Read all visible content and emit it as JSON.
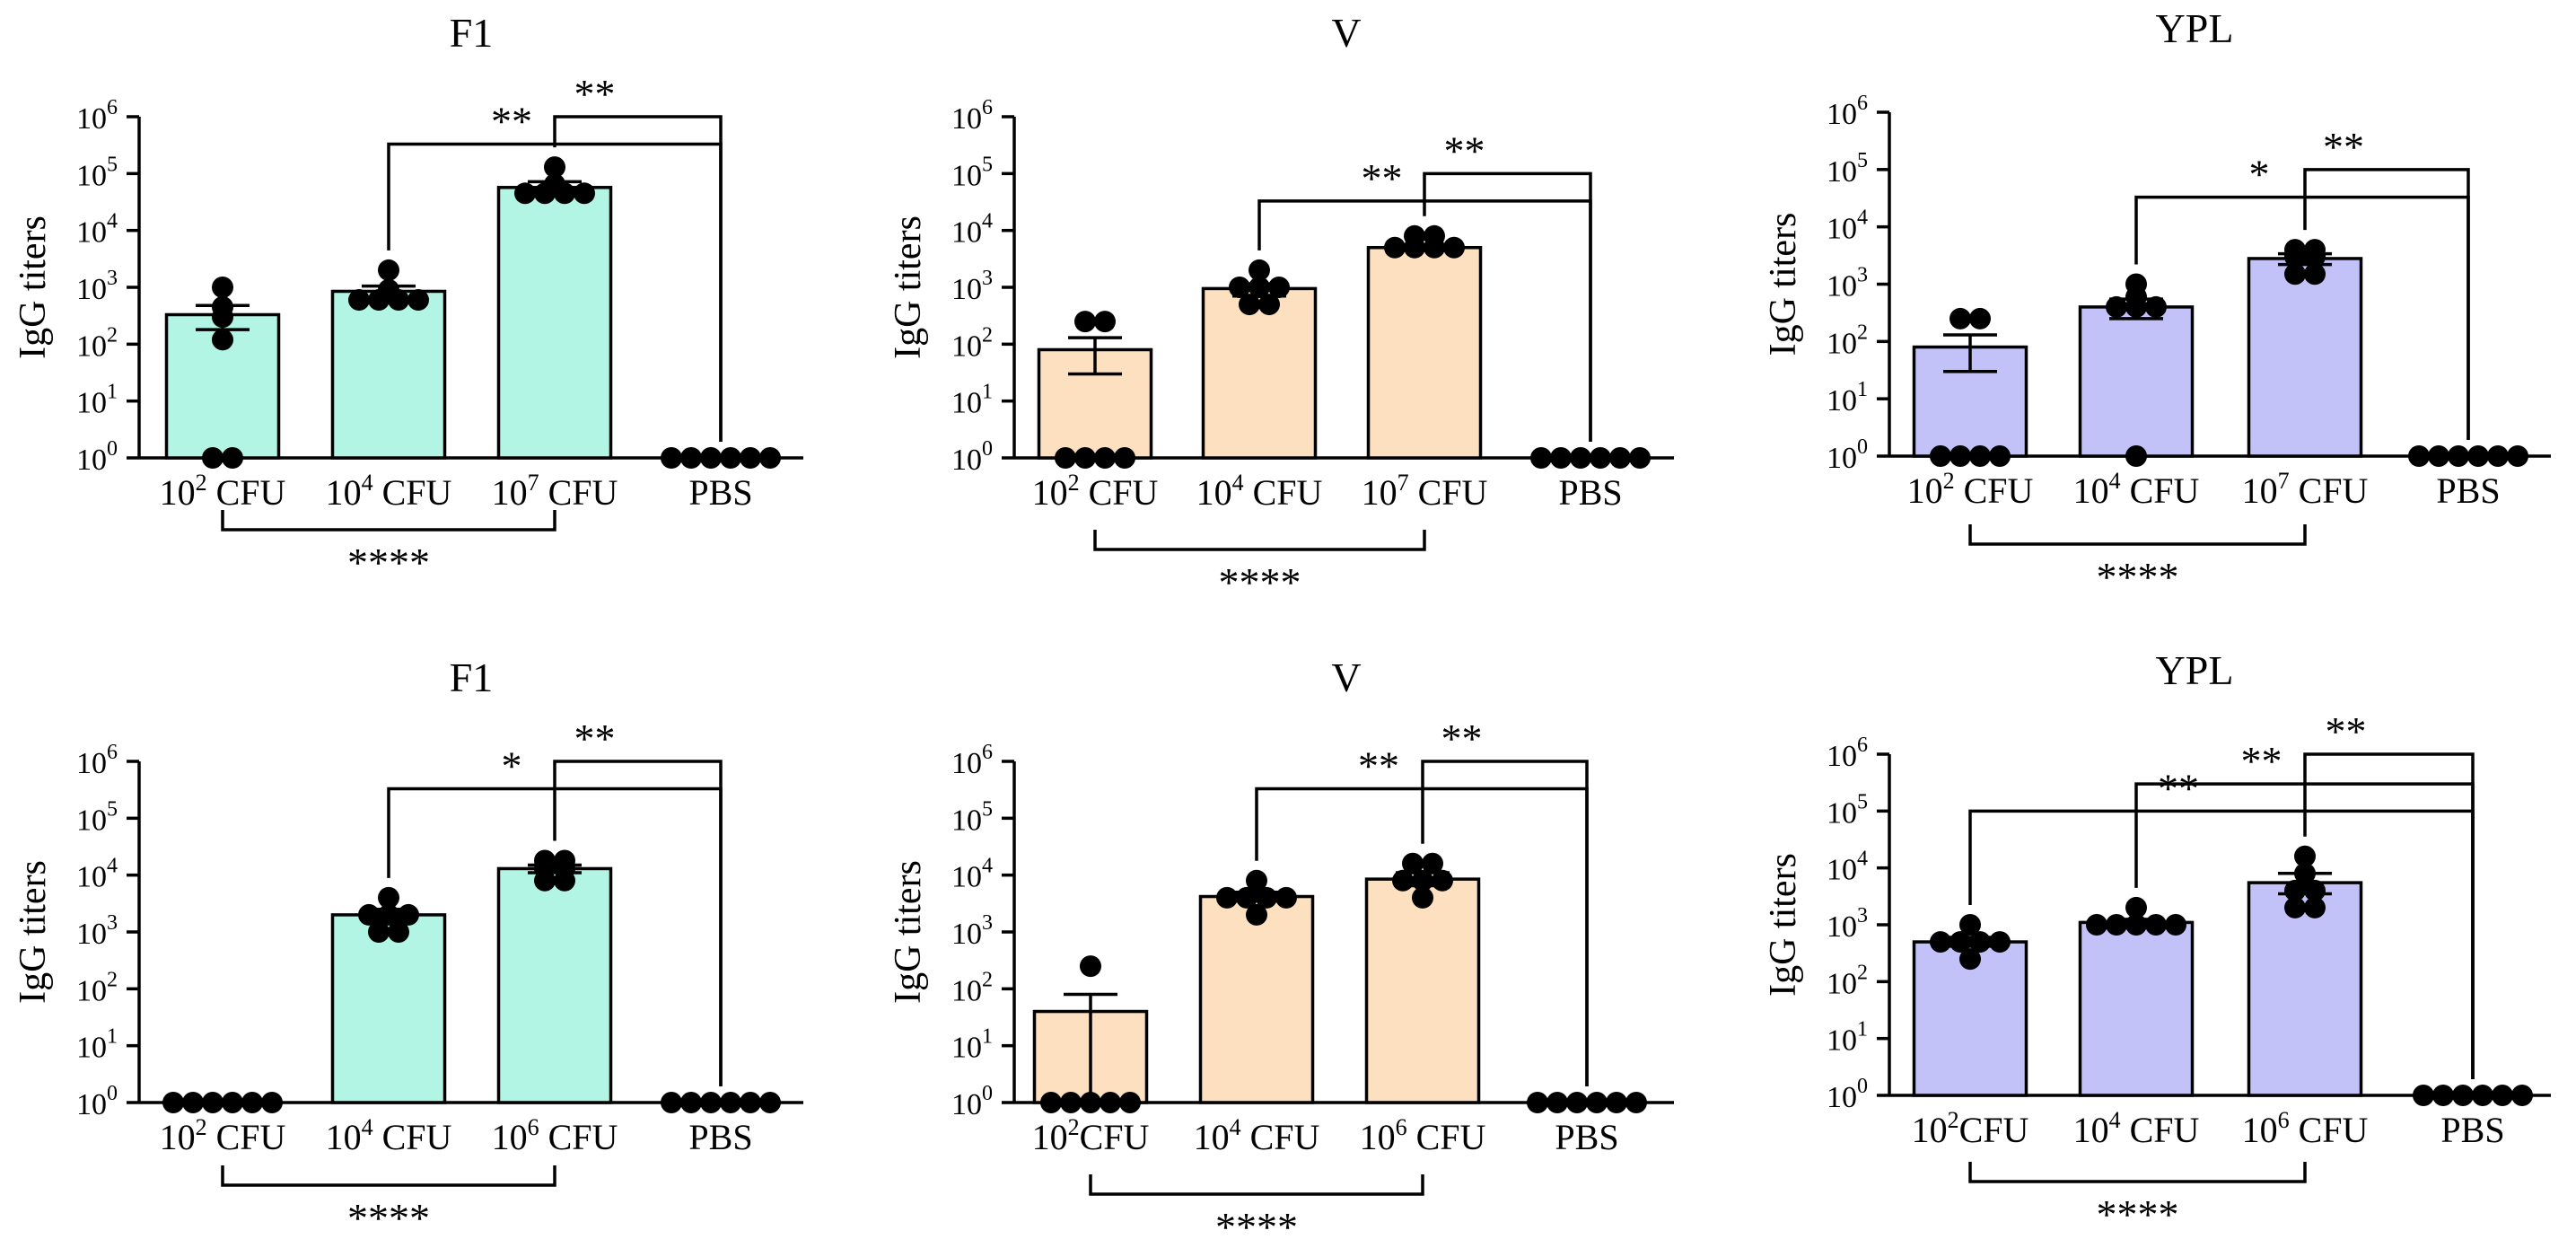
{
  "figure": {
    "yaxis_label": "IgG titers",
    "yscale": "log10",
    "ylim": [
      1,
      1000000
    ],
    "y_ticks": [
      1,
      10,
      100,
      1000,
      10000,
      100000,
      1000000
    ],
    "y_tick_exponents": [
      "0",
      "1",
      "2",
      "3",
      "4",
      "5",
      "6"
    ],
    "colors": {
      "F1": "#b3f5e5",
      "V": "#fde0c0",
      "YPL": "#c2c2f8",
      "axis": "#000000",
      "points": "#000000"
    }
  },
  "chart_data": [
    {
      "type": "bar",
      "title": "F1",
      "ylabel": "IgG titers",
      "yscale": "log",
      "ylim": [
        1,
        1000000
      ],
      "color": "#b3f5e5",
      "categories": [
        {
          "base": "10",
          "exp": "2",
          "suffix": " CFU"
        },
        {
          "base": "10",
          "exp": "4",
          "suffix": " CFU"
        },
        {
          "base": "10",
          "exp": "7",
          "suffix": " CFU"
        },
        {
          "base": "PBS",
          "exp": "",
          "suffix": ""
        }
      ],
      "values": [
        330,
        850,
        57000,
        1
      ],
      "errors": [
        [
          180,
          480
        ],
        [
          650,
          1050
        ],
        [
          45000,
          72000
        ],
        null
      ],
      "points": [
        [
          1000,
          450,
          300,
          120,
          1,
          1
        ],
        [
          2000,
          900,
          600,
          600,
          600,
          600
        ],
        [
          130000,
          65000,
          45000,
          45000,
          45000,
          45000
        ],
        [
          1,
          1,
          1,
          1,
          1,
          1
        ]
      ],
      "significance": [
        {
          "label": "**",
          "from": 2,
          "to": 3,
          "value": 1000000,
          "pos": "top"
        },
        {
          "label": "**",
          "from": 1,
          "to": 3,
          "value": 330000,
          "pos": "top"
        },
        {
          "label": "****",
          "from": 0,
          "to": 2,
          "pos": "bottom"
        }
      ]
    },
    {
      "type": "bar",
      "title": "V",
      "ylabel": "IgG titers",
      "yscale": "log",
      "ylim": [
        1,
        1000000
      ],
      "color": "#fde0c0",
      "categories": [
        {
          "base": "10",
          "exp": "2",
          "suffix": " CFU"
        },
        {
          "base": "10",
          "exp": "4",
          "suffix": " CFU"
        },
        {
          "base": "10",
          "exp": "7",
          "suffix": " CFU"
        },
        {
          "base": "PBS",
          "exp": "",
          "suffix": ""
        }
      ],
      "values": [
        80,
        950,
        5000,
        1
      ],
      "errors": [
        [
          30,
          130
        ],
        [
          700,
          1150
        ],
        [
          4500,
          5600
        ],
        null
      ],
      "points": [
        [
          250,
          250,
          1,
          1,
          1,
          1
        ],
        [
          2000,
          1000,
          1000,
          1000,
          500,
          500
        ],
        [
          8000,
          8000,
          5000,
          5000,
          5000,
          5000
        ],
        [
          1,
          1,
          1,
          1,
          1,
          1
        ]
      ],
      "significance": [
        {
          "label": "**",
          "from": 2,
          "to": 3,
          "value": 100000,
          "pos": "top"
        },
        {
          "label": "**",
          "from": 1,
          "to": 3,
          "value": 33000,
          "pos": "top"
        },
        {
          "label": "****",
          "from": 0,
          "to": 2,
          "pos": "bottom"
        }
      ]
    },
    {
      "type": "bar",
      "title": "YPL",
      "ylabel": "IgG titers",
      "yscale": "log",
      "ylim": [
        1,
        1000000
      ],
      "color": "#c2c2f8",
      "categories": [
        {
          "base": "10",
          "exp": "2",
          "suffix": " CFU"
        },
        {
          "base": "10",
          "exp": "4",
          "suffix": " CFU"
        },
        {
          "base": "10",
          "exp": "7",
          "suffix": " CFU"
        },
        {
          "base": "PBS",
          "exp": "",
          "suffix": ""
        }
      ],
      "values": [
        80,
        400,
        2800,
        1
      ],
      "errors": [
        [
          30,
          130
        ],
        [
          250,
          550
        ],
        [
          2200,
          3400
        ],
        null
      ],
      "points": [
        [
          250,
          250,
          1,
          1,
          1,
          1
        ],
        [
          1000,
          600,
          400,
          400,
          400,
          1
        ],
        [
          4000,
          4000,
          3000,
          3000,
          1500,
          1500
        ],
        [
          1,
          1,
          1,
          1,
          1,
          1
        ]
      ],
      "significance": [
        {
          "label": "**",
          "from": 2,
          "to": 3,
          "value": 100000,
          "pos": "top"
        },
        {
          "label": "*",
          "from": 1,
          "to": 3,
          "value": 33000,
          "pos": "top"
        },
        {
          "label": "****",
          "from": 0,
          "to": 2,
          "pos": "bottom"
        }
      ]
    },
    {
      "type": "bar",
      "title": "F1",
      "ylabel": "IgG titers",
      "yscale": "log",
      "ylim": [
        1,
        1000000
      ],
      "color": "#b3f5e5",
      "categories": [
        {
          "base": "10",
          "exp": "2",
          "suffix": " CFU"
        },
        {
          "base": "10",
          "exp": "4",
          "suffix": " CFU"
        },
        {
          "base": "10",
          "exp": "6",
          "suffix": " CFU"
        },
        {
          "base": "PBS",
          "exp": "",
          "suffix": ""
        }
      ],
      "values": [
        1,
        2000,
        13000,
        1
      ],
      "errors": [
        null,
        [
          1600,
          2500
        ],
        [
          11000,
          15000
        ],
        null
      ],
      "points": [
        [
          1,
          1,
          1,
          1,
          1,
          1
        ],
        [
          4000,
          2000,
          2000,
          2000,
          1000,
          1000
        ],
        [
          18000,
          18000,
          13000,
          13000,
          8000,
          8000
        ],
        [
          1,
          1,
          1,
          1,
          1,
          1
        ]
      ],
      "significance": [
        {
          "label": "**",
          "from": 2,
          "to": 3,
          "value": 1000000,
          "pos": "top"
        },
        {
          "label": "*",
          "from": 1,
          "to": 3,
          "value": 330000,
          "pos": "top"
        },
        {
          "label": "****",
          "from": 0,
          "to": 2,
          "pos": "bottom"
        }
      ]
    },
    {
      "type": "bar",
      "title": "V",
      "ylabel": "IgG titers",
      "yscale": "log",
      "ylim": [
        1,
        1000000
      ],
      "color": "#fde0c0",
      "categories": [
        {
          "base": "10",
          "exp": "2",
          "suffix": "CFU"
        },
        {
          "base": "10",
          "exp": "4",
          "suffix": " CFU"
        },
        {
          "base": "10",
          "exp": "6",
          "suffix": " CFU"
        },
        {
          "base": "PBS",
          "exp": "",
          "suffix": ""
        }
      ],
      "values": [
        40,
        4200,
        8500,
        1
      ],
      "errors": [
        [
          0,
          80
        ],
        [
          3500,
          5000
        ],
        [
          6500,
          11000
        ],
        null
      ],
      "points": [
        [
          250,
          1,
          1,
          1,
          1,
          1
        ],
        [
          8000,
          4000,
          4000,
          4000,
          4000,
          2000
        ],
        [
          16000,
          16000,
          8000,
          8000,
          8000,
          4000
        ],
        [
          1,
          1,
          1,
          1,
          1,
          1
        ]
      ],
      "significance": [
        {
          "label": "**",
          "from": 2,
          "to": 3,
          "value": 1000000,
          "pos": "top"
        },
        {
          "label": "**",
          "from": 1,
          "to": 3,
          "value": 330000,
          "pos": "top"
        },
        {
          "label": "****",
          "from": 0,
          "to": 2,
          "pos": "bottom"
        }
      ]
    },
    {
      "type": "bar",
      "title": "YPL",
      "ylabel": "IgG titers",
      "yscale": "log",
      "ylim": [
        1,
        1000000
      ],
      "color": "#c2c2f8",
      "categories": [
        {
          "base": "10",
          "exp": "2",
          "suffix": "CFU"
        },
        {
          "base": "10",
          "exp": "4",
          "suffix": " CFU"
        },
        {
          "base": "10",
          "exp": "6",
          "suffix": " CFU"
        },
        {
          "base": "PBS",
          "exp": "",
          "suffix": ""
        }
      ],
      "values": [
        500,
        1100,
        5500,
        1
      ],
      "errors": [
        [
          420,
          600
        ],
        [
          1000,
          1250
        ],
        [
          3500,
          8000
        ],
        null
      ],
      "points": [
        [
          1000,
          500,
          500,
          500,
          500,
          250
        ],
        [
          2000,
          1000,
          1000,
          1000,
          1000,
          1000
        ],
        [
          16000,
          8000,
          4000,
          4000,
          2000,
          2000
        ],
        [
          1,
          1,
          1,
          1,
          1,
          1
        ]
      ],
      "significance": [
        {
          "label": "**",
          "from": 2,
          "to": 3,
          "value": 1000000,
          "pos": "top"
        },
        {
          "label": "**",
          "from": 1,
          "to": 3,
          "value": 300000,
          "pos": "top"
        },
        {
          "label": "**",
          "from": 0,
          "to": 3,
          "value": 100000,
          "pos": "top"
        },
        {
          "label": "****",
          "from": 0,
          "to": 2,
          "pos": "bottom"
        }
      ]
    }
  ]
}
